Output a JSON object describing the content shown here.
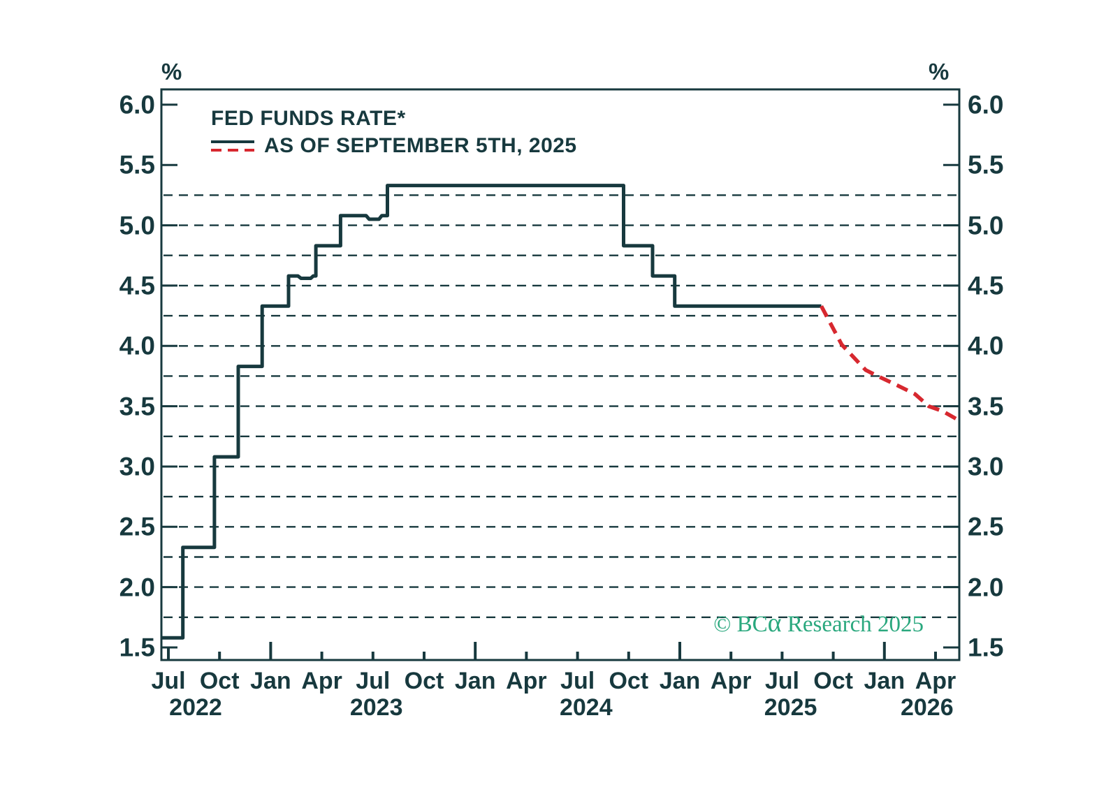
{
  "colors": {
    "ink": "#17393e",
    "projection_red": "#d7282f",
    "brand_green": "#2aa87e",
    "background": "#ffffff"
  },
  "legend": {
    "title": "FED FUNDS RATE*",
    "subtitle": "AS OF SEPTEMBER 5TH, 2025"
  },
  "copyright": {
    "prefix": "© BC",
    "alpha": "α",
    "suffix": " Research 2025"
  },
  "chart_data": {
    "type": "line",
    "title": "FED FUNDS RATE*",
    "subtitle": "AS OF SEPTEMBER 5TH, 2025",
    "unit": "%",
    "grid": "dashed-horizontal",
    "legend_position": "top-left-inside",
    "ylim": [
      1.4,
      6.13
    ],
    "y_ticks": [
      {
        "v": 6.0,
        "label": "6.0"
      },
      {
        "v": 5.5,
        "label": "5.5"
      },
      {
        "v": 5.0,
        "label": "5.0"
      },
      {
        "v": 4.5,
        "label": "4.5"
      },
      {
        "v": 4.0,
        "label": "4.0"
      },
      {
        "v": 3.5,
        "label": "3.5"
      },
      {
        "v": 3.0,
        "label": "3.0"
      },
      {
        "v": 2.5,
        "label": "2.5"
      },
      {
        "v": 2.0,
        "label": "2.0"
      },
      {
        "v": 1.5,
        "label": "1.5"
      }
    ],
    "y_gridlines": [
      1.75,
      2.0,
      2.25,
      2.5,
      2.75,
      3.0,
      3.25,
      3.5,
      3.75,
      4.0,
      4.25,
      4.5,
      4.75,
      5.0,
      5.25
    ],
    "x_axis": {
      "start": "Jul 2022",
      "end": "Apr 2026",
      "month_ticks": [
        {
          "label": "Jul",
          "m": 0,
          "major": false
        },
        {
          "label": "Oct",
          "m": 3,
          "major": false
        },
        {
          "label": "Jan",
          "m": 6,
          "major": true
        },
        {
          "label": "Apr",
          "m": 9,
          "major": false
        },
        {
          "label": "Jul",
          "m": 12,
          "major": false
        },
        {
          "label": "Oct",
          "m": 15,
          "major": false
        },
        {
          "label": "Jan",
          "m": 18,
          "major": true
        },
        {
          "label": "Apr",
          "m": 21,
          "major": false
        },
        {
          "label": "Jul",
          "m": 24,
          "major": false
        },
        {
          "label": "Oct",
          "m": 27,
          "major": false
        },
        {
          "label": "Jan",
          "m": 30,
          "major": true
        },
        {
          "label": "Apr",
          "m": 33,
          "major": false
        },
        {
          "label": "Jul",
          "m": 36,
          "major": false
        },
        {
          "label": "Oct",
          "m": 39,
          "major": false
        },
        {
          "label": "Jan",
          "m": 42,
          "major": true
        },
        {
          "label": "Apr",
          "m": 45,
          "major": false
        }
      ],
      "year_labels": [
        {
          "label": "2022",
          "m": 1.6
        },
        {
          "label": "2023",
          "m": 12.2
        },
        {
          "label": "2024",
          "m": 24.5
        },
        {
          "label": "2025",
          "m": 36.5
        },
        {
          "label": "2026",
          "m": 44.5
        }
      ]
    },
    "rate_levels": [
      1.58,
      2.33,
      3.08,
      3.83,
      4.33,
      4.58,
      4.83,
      5.08,
      5.33,
      4.83,
      4.58,
      4.33
    ],
    "series": [
      {
        "name": "FED FUNDS RATE*",
        "style": "solid",
        "color_key": "ink",
        "points_month_rate": [
          [
            -0.41,
            1.58
          ],
          [
            0.85,
            1.58
          ],
          [
            0.85,
            2.33
          ],
          [
            2.7,
            2.33
          ],
          [
            2.7,
            3.08
          ],
          [
            4.1,
            3.08
          ],
          [
            4.1,
            3.83
          ],
          [
            5.5,
            3.83
          ],
          [
            5.5,
            4.33
          ],
          [
            7.05,
            4.33
          ],
          [
            7.05,
            4.58
          ],
          [
            7.6,
            4.58
          ],
          [
            7.78,
            4.56
          ],
          [
            8.35,
            4.56
          ],
          [
            8.5,
            4.58
          ],
          [
            8.65,
            4.58
          ],
          [
            8.65,
            4.83
          ],
          [
            10.1,
            4.83
          ],
          [
            10.1,
            5.08
          ],
          [
            11.6,
            5.08
          ],
          [
            11.78,
            5.05
          ],
          [
            12.35,
            5.05
          ],
          [
            12.52,
            5.08
          ],
          [
            12.85,
            5.08
          ],
          [
            12.85,
            5.33
          ],
          [
            26.7,
            5.33
          ],
          [
            26.7,
            4.83
          ],
          [
            28.4,
            4.83
          ],
          [
            28.4,
            4.58
          ],
          [
            29.7,
            4.58
          ],
          [
            29.7,
            4.33
          ],
          [
            38.3,
            4.33
          ]
        ]
      },
      {
        "name": "AS OF SEPTEMBER 5TH, 2025",
        "style": "dashed",
        "color_key": "projection_red",
        "points_month_rate": [
          [
            38.3,
            4.33
          ],
          [
            39.5,
            4.01
          ],
          [
            40.9,
            3.8
          ],
          [
            41.6,
            3.75
          ],
          [
            42.8,
            3.67
          ],
          [
            43.8,
            3.6
          ],
          [
            44.6,
            3.5
          ],
          [
            45.4,
            3.46
          ],
          [
            46.4,
            3.38
          ]
        ]
      }
    ]
  }
}
